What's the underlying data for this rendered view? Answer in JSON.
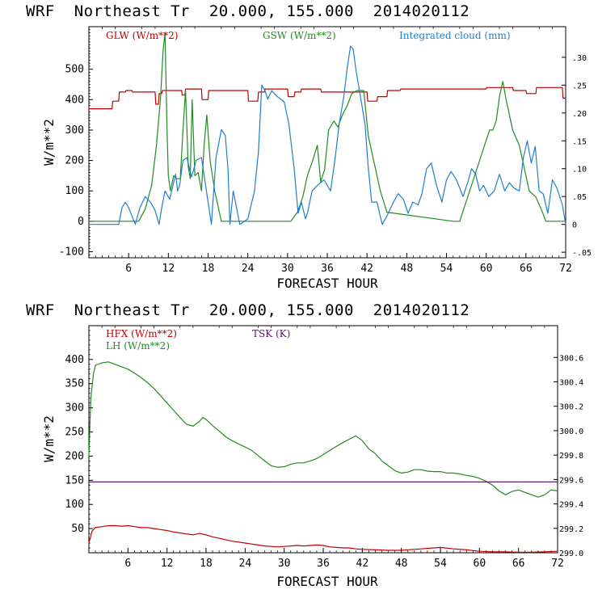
{
  "chart_data": [
    {
      "type": "line",
      "title": "WRF  Northeast Tr  20.000, 155.000  2014020112",
      "xlabel": "FORECAST HOUR",
      "ylabel": "W/m**2",
      "xlim": [
        0,
        72
      ],
      "ylim": [
        -120,
        640
      ],
      "xticks": [
        6,
        12,
        18,
        24,
        30,
        36,
        42,
        48,
        54,
        60,
        66,
        72
      ],
      "yticks": [
        -100,
        0,
        100,
        200,
        300,
        400,
        500
      ],
      "y2lim": [
        -0.06,
        0.355
      ],
      "y2ticks": [
        -0.05,
        0,
        0.05,
        0.1,
        0.15,
        0.2,
        0.25,
        0.3
      ],
      "y2ticklabels": [
        "-.05",
        "0",
        ".05",
        ".10",
        ".15",
        ".20",
        ".25",
        ".30"
      ],
      "legend_placement": "top",
      "series": [
        {
          "name": "GLW (W/m**2)",
          "color": "#c00000",
          "axis": "left",
          "x": [
            0,
            3.5,
            3.6,
            4.5,
            4.6,
            5.5,
            5.6,
            6.5,
            6.6,
            10.0,
            10.1,
            10.5,
            10.6,
            11.0,
            11.1,
            14.0,
            14.1,
            14.5,
            14.6,
            17.0,
            17.1,
            18.0,
            18.1,
            24.0,
            24.1,
            25.5,
            25.6,
            26.5,
            26.6,
            30.0,
            30.1,
            31.0,
            31.1,
            32.0,
            32.1,
            35.0,
            35.1,
            42.0,
            42.1,
            43.5,
            43.6,
            45.0,
            45.1,
            47.0,
            47.1,
            60.0,
            60.1,
            64.0,
            64.1,
            66.0,
            66.1,
            67.5,
            67.6,
            68.0,
            68.1,
            71.5,
            71.6,
            72.0
          ],
          "y": [
            370,
            370,
            395,
            395,
            425,
            425,
            430,
            430,
            425,
            425,
            385,
            385,
            420,
            420,
            430,
            430,
            415,
            415,
            435,
            435,
            400,
            400,
            430,
            430,
            395,
            395,
            425,
            425,
            435,
            435,
            410,
            410,
            425,
            425,
            435,
            435,
            425,
            425,
            395,
            395,
            410,
            410,
            430,
            430,
            435,
            435,
            440,
            440,
            430,
            430,
            420,
            420,
            440,
            440,
            440,
            440,
            405,
            405
          ]
        },
        {
          "name": "GSW (W/m**2)",
          "color": "#228b22",
          "axis": "left",
          "x": [
            0,
            7.5,
            8.5,
            9.5,
            10.2,
            10.8,
            11.2,
            11.5,
            11.8,
            12.0,
            12.3,
            12.8,
            13.3,
            13.8,
            14.2,
            14.6,
            15.0,
            15.3,
            15.6,
            16.0,
            16.5,
            17.0,
            17.4,
            17.8,
            18.3,
            19.0,
            19.5,
            20.0,
            30.5,
            31.5,
            32.3,
            33.0,
            33.8,
            34.5,
            35.0,
            35.6,
            36.2,
            37.0,
            37.6,
            38.3,
            39.0,
            39.7,
            40.5,
            41.5,
            42.2,
            43.0,
            44.0,
            45.0,
            55.0,
            56.0,
            57.5,
            59.0,
            60.5,
            61.0,
            61.5,
            62.0,
            62.5,
            63.0,
            64.0,
            65.0,
            66.5,
            67.5,
            68.5,
            69.0,
            72.0
          ],
          "y": [
            0,
            0,
            40,
            120,
            250,
            400,
            560,
            620,
            300,
            150,
            100,
            150,
            140,
            140,
            300,
            430,
            180,
            140,
            400,
            150,
            160,
            100,
            250,
            350,
            200,
            100,
            50,
            0,
            0,
            30,
            80,
            150,
            200,
            250,
            130,
            170,
            300,
            330,
            310,
            350,
            380,
            420,
            430,
            430,
            280,
            200,
            100,
            30,
            0,
            0,
            100,
            200,
            300,
            300,
            330,
            410,
            460,
            400,
            300,
            250,
            100,
            80,
            30,
            0,
            0
          ]
        },
        {
          "name": "Integrated cloud (mm)",
          "color": "#1e7fd0",
          "axis": "right",
          "x": [
            0,
            4.5,
            5.0,
            5.5,
            6.0,
            7.0,
            7.7,
            8.5,
            9.3,
            10.0,
            10.6,
            11.0,
            11.5,
            12.2,
            12.7,
            13.1,
            13.4,
            13.7,
            14.2,
            14.8,
            15.5,
            16.2,
            17.0,
            17.5,
            18.5,
            19.2,
            20.0,
            20.6,
            21.0,
            21.3,
            21.8,
            22.3,
            22.8,
            24.0,
            25.0,
            25.6,
            26.1,
            26.6,
            27.0,
            27.6,
            28.4,
            29.5,
            30.2,
            31.0,
            31.6,
            32.1,
            32.7,
            33.0,
            33.7,
            34.5,
            35.5,
            36.5,
            37.2,
            37.8,
            38.5,
            39.0,
            39.5,
            39.9,
            40.3,
            41.0,
            41.7,
            42.2,
            42.7,
            43.5,
            44.3,
            45.0,
            46.0,
            46.7,
            47.5,
            48.2,
            48.9,
            49.7,
            50.3,
            51.0,
            51.7,
            52.5,
            53.3,
            54.0,
            54.7,
            55.5,
            56.5,
            57.2,
            57.8,
            58.4,
            59.0,
            59.6,
            60.4,
            61.2,
            62.0,
            62.8,
            63.5,
            64.2,
            65.0,
            65.6,
            66.2,
            66.8,
            67.4,
            68.0,
            68.6,
            69.3,
            70.0,
            70.7,
            71.5,
            72.0
          ],
          "y": [
            0,
            0,
            0.03,
            0.04,
            0.03,
            0,
            0.03,
            0.05,
            0.04,
            0.025,
            0,
            0.03,
            0.06,
            0.045,
            0.07,
            0.09,
            0.06,
            0.07,
            0.115,
            0.12,
            0.085,
            0.115,
            0.12,
            0.08,
            0,
            0.12,
            0.17,
            0.16,
            0.1,
            0,
            0.06,
            0.03,
            0,
            0.01,
            0.06,
            0.13,
            0.25,
            0.24,
            0.225,
            0.24,
            0.23,
            0.22,
            0.18,
            0.1,
            0.02,
            0.04,
            0.01,
            0.02,
            0.06,
            0.07,
            0.08,
            0.06,
            0.12,
            0.18,
            0.23,
            0.28,
            0.32,
            0.315,
            0.28,
            0.23,
            0.18,
            0.1,
            0.04,
            0.04,
            0,
            0.015,
            0.04,
            0.055,
            0.045,
            0.02,
            0.04,
            0.035,
            0.055,
            0.1,
            0.11,
            0.07,
            0.04,
            0.08,
            0.095,
            0.08,
            0.05,
            0.075,
            0.1,
            0.09,
            0.06,
            0.07,
            0.05,
            0.06,
            0.09,
            0.06,
            0.075,
            0.065,
            0.06,
            0.12,
            0.15,
            0.11,
            0.14,
            0.06,
            0.055,
            0.02,
            0.08,
            0.065,
            0.035,
            0.0
          ],
          "y2ticklabels_note": ""
        }
      ]
    },
    {
      "type": "line",
      "title": "WRF  Northeast Tr  20.000, 155.000  2014020112",
      "xlabel": "FORECAST HOUR",
      "ylabel": "W/m**2",
      "xlim": [
        0,
        72
      ],
      "ylim": [
        0,
        470
      ],
      "xticks": [
        6,
        12,
        18,
        24,
        30,
        36,
        42,
        48,
        54,
        60,
        66,
        72
      ],
      "yticks": [
        50,
        100,
        150,
        200,
        250,
        300,
        350,
        400
      ],
      "y2lim": [
        299.0,
        300.86
      ],
      "y2ticks": [
        299.0,
        299.2,
        299.4,
        299.6,
        299.8,
        300.0,
        300.2,
        300.4,
        300.6
      ],
      "y2ticklabels": [
        "299.0",
        "299.2",
        "299.4",
        "299.6",
        "299.8",
        "300.0",
        "300.2",
        "300.4",
        "300.6"
      ],
      "legend_placement": "top-left",
      "series": [
        {
          "name": "HFX (W/m**2)",
          "color": "#c00000",
          "axis": "left",
          "x": [
            0,
            0.5,
            1,
            2,
            3,
            4,
            5,
            6,
            7,
            8,
            9,
            10,
            11,
            12,
            13,
            14,
            15,
            16,
            17,
            18,
            19,
            20,
            21,
            22,
            23,
            24,
            25,
            26,
            27,
            28,
            29,
            30,
            31,
            32,
            33,
            34,
            35,
            36,
            37,
            38,
            39,
            40,
            41,
            42,
            44,
            46,
            48,
            50,
            52,
            54,
            56,
            58,
            60,
            62,
            64,
            66,
            68,
            70,
            72
          ],
          "y": [
            20,
            45,
            52,
            54,
            56,
            56,
            55,
            56,
            54,
            52,
            52,
            50,
            48,
            46,
            43,
            41,
            39,
            37,
            40,
            37,
            33,
            30,
            27,
            24,
            22,
            20,
            18,
            16,
            14,
            13,
            12,
            13,
            14,
            15,
            14,
            15,
            16,
            15,
            12,
            11,
            10,
            10,
            8,
            7,
            6,
            5,
            5,
            7,
            9,
            11,
            8,
            6,
            3,
            2,
            2,
            1,
            1,
            2,
            3
          ]
        },
        {
          "name": "LH  (W/m**2)",
          "color": "#228b22",
          "axis": "left",
          "x": [
            0,
            0.3,
            0.7,
            1,
            2,
            3,
            4,
            5,
            6,
            7,
            8,
            9,
            10,
            11,
            12,
            13,
            14,
            15,
            16,
            17,
            17.5,
            18,
            19,
            20,
            21,
            22,
            23,
            24,
            25,
            26,
            27,
            28,
            29,
            30,
            31,
            32,
            33,
            34,
            35,
            36,
            37,
            38,
            39,
            40,
            41,
            42,
            43,
            44,
            45,
            46,
            47,
            48,
            49,
            50,
            51,
            52,
            53,
            54,
            55,
            56,
            57,
            58,
            59,
            60,
            61,
            62,
            63,
            64,
            65,
            66,
            67,
            68,
            69,
            70,
            71,
            72
          ],
          "y": [
            200,
            320,
            370,
            388,
            393,
            395,
            390,
            385,
            380,
            372,
            363,
            352,
            340,
            325,
            310,
            295,
            280,
            266,
            262,
            272,
            280,
            276,
            263,
            252,
            240,
            232,
            225,
            219,
            212,
            201,
            190,
            180,
            177,
            178,
            183,
            186,
            186,
            190,
            195,
            203,
            212,
            220,
            228,
            235,
            242,
            232,
            215,
            205,
            190,
            180,
            170,
            165,
            167,
            172,
            172,
            169,
            168,
            168,
            165,
            165,
            163,
            160,
            158,
            154,
            148,
            140,
            128,
            120,
            127,
            130,
            125,
            120,
            115,
            120,
            130,
            128
          ]
        },
        {
          "name": "TSK (K)",
          "color": "#5a1a6a",
          "axis": "right",
          "x": [
            0,
            72
          ],
          "y": [
            299.58,
            299.58
          ]
        }
      ]
    }
  ]
}
